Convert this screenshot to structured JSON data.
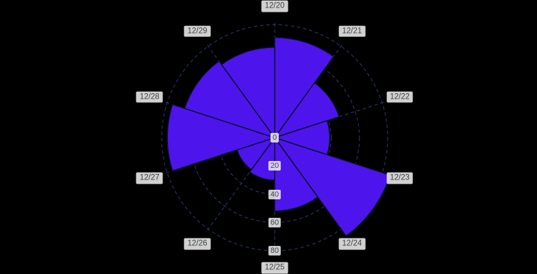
{
  "background_color": "#000000",
  "chart_data": {
    "type": "polar_area",
    "title": "",
    "categories": [
      "12/20",
      "12/21",
      "12/22",
      "12/23",
      "12/24",
      "12/25",
      "12/26",
      "12/27",
      "12/28",
      "12/29"
    ],
    "values": [
      71,
      48,
      39,
      86,
      52,
      30,
      28,
      76,
      67,
      64
    ],
    "radial_ticks": [
      0,
      20,
      40,
      60,
      80
    ],
    "radial_max": 80,
    "start_angle_deg": 0,
    "direction": "clockwise",
    "grid": true,
    "grid_style": "dashed",
    "legend": false,
    "tick_label_position": "bottom-spoke",
    "colors": {
      "wedge_fill": "#4D15EC",
      "wedge_stroke": "#0a0f2a",
      "grid_line": "#26355c",
      "angle_line": "#26355c",
      "label_text": "#3d4247",
      "label_backdrop": "rgba(255,255,255,0.8)"
    }
  }
}
